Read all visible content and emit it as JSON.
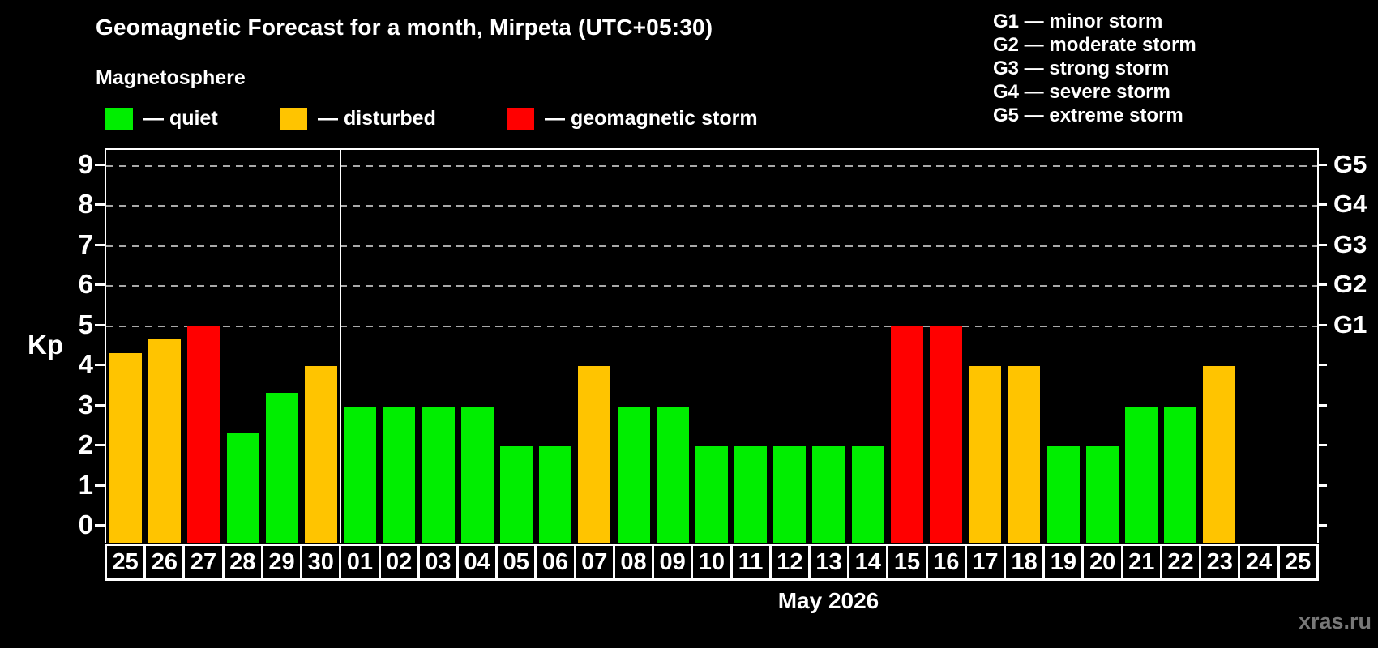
{
  "header": {
    "title": "Geomagnetic Forecast for a month, Mirpeta (UTC+05:30)",
    "subtitle": "Magnetosphere",
    "watermark": "xras.ru"
  },
  "legend": {
    "items": [
      {
        "key": "quiet",
        "label": "— quiet",
        "color": "#00ee00"
      },
      {
        "key": "disturbed",
        "label": "— disturbed",
        "color": "#ffc400"
      },
      {
        "key": "storm",
        "label": "— geomagnetic storm",
        "color": "#ff0000"
      }
    ]
  },
  "g_legend": {
    "items": [
      "G1 — minor storm",
      "G2 — moderate storm",
      "G3 — strong storm",
      "G4 — severe storm",
      "G5 — extreme storm"
    ]
  },
  "chart_data": {
    "type": "bar",
    "title": "Geomagnetic Forecast for a month, Mirpeta (UTC+05:30)",
    "xlabel": "May 2026",
    "ylabel": "Kp",
    "ylim": [
      0,
      9
    ],
    "categories": [
      "25",
      "26",
      "27",
      "28",
      "29",
      "30",
      "01",
      "02",
      "03",
      "04",
      "05",
      "06",
      "07",
      "08",
      "09",
      "10",
      "11",
      "12",
      "13",
      "14",
      "15",
      "16",
      "17",
      "18",
      "19",
      "20",
      "21",
      "22",
      "23",
      "24",
      "25"
    ],
    "values": [
      4.33,
      4.67,
      5,
      2.33,
      3.33,
      4,
      3,
      3,
      3,
      3,
      2,
      2,
      4,
      3,
      3,
      2,
      2,
      2,
      2,
      2,
      5,
      5,
      4,
      4,
      2,
      2,
      3,
      3,
      4,
      null,
      null
    ],
    "statuses": [
      "disturbed",
      "disturbed",
      "storm",
      "quiet",
      "quiet",
      "disturbed",
      "quiet",
      "quiet",
      "quiet",
      "quiet",
      "quiet",
      "quiet",
      "disturbed",
      "quiet",
      "quiet",
      "quiet",
      "quiet",
      "quiet",
      "quiet",
      "quiet",
      "storm",
      "storm",
      "disturbed",
      "disturbed",
      "quiet",
      "quiet",
      "quiet",
      "quiet",
      "disturbed",
      null,
      null
    ],
    "colors": {
      "quiet": "#00ee00",
      "disturbed": "#ffc400",
      "storm": "#ff0000"
    },
    "y_ticks": [
      0,
      1,
      2,
      3,
      4,
      5,
      6,
      7,
      8,
      9
    ],
    "gridlines_at": [
      5,
      6,
      7,
      8,
      9
    ],
    "right_axis_labels": [
      {
        "label": "G1",
        "value": 5
      },
      {
        "label": "G2",
        "value": 6
      },
      {
        "label": "G3",
        "value": 7
      },
      {
        "label": "G4",
        "value": 8
      },
      {
        "label": "G5",
        "value": 9
      }
    ],
    "month_separator_after_index": 5,
    "grid": true,
    "legend_position": "top"
  }
}
